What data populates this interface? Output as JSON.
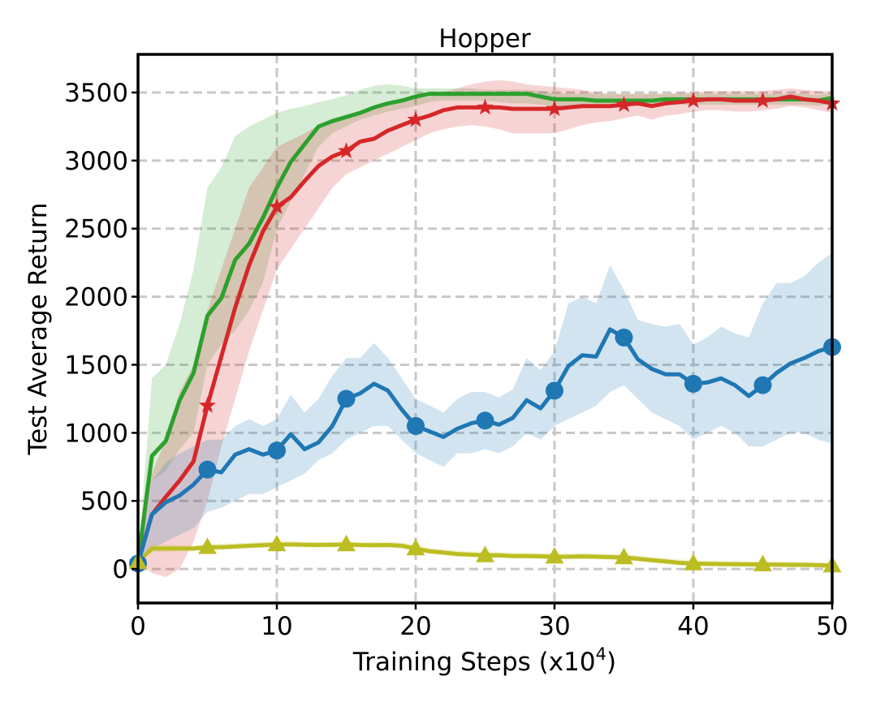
{
  "chart_data": {
    "type": "line",
    "title": "Hopper",
    "xlabel": "Training Steps (x10",
    "xlabel_sup": "4",
    "xlabel_end": ")",
    "ylabel": "Test Average Return",
    "xlim": [
      0,
      50
    ],
    "ylim": [
      -250,
      3780
    ],
    "xticks": [
      0,
      10,
      20,
      30,
      40,
      50
    ],
    "yticks": [
      0,
      500,
      1000,
      1500,
      2000,
      2500,
      3000,
      3500
    ],
    "grid": true,
    "series": [
      {
        "color": "#2ca02c",
        "marker": "none",
        "x": [
          0,
          1,
          2,
          3,
          4,
          5,
          6,
          7,
          8,
          9,
          10,
          11,
          12,
          13,
          14,
          15,
          16,
          17,
          18,
          19,
          20,
          21,
          22,
          23,
          24,
          25,
          26,
          27,
          28,
          29,
          30,
          31,
          32,
          33,
          34,
          35,
          36,
          37,
          38,
          39,
          40,
          41,
          42,
          43,
          44,
          45,
          46,
          47,
          48,
          49,
          50
        ],
        "y": [
          50,
          830,
          940,
          1240,
          1440,
          1860,
          1990,
          2270,
          2390,
          2580,
          2800,
          2990,
          3120,
          3250,
          3290,
          3320,
          3350,
          3390,
          3420,
          3440,
          3470,
          3490,
          3490,
          3490,
          3490,
          3490,
          3490,
          3490,
          3490,
          3470,
          3450,
          3450,
          3450,
          3440,
          3440,
          3440,
          3440,
          3440,
          3450,
          3450,
          3450,
          3450,
          3450,
          3450,
          3450,
          3450,
          3450,
          3450,
          3450,
          3440,
          3460
        ],
        "lower": [
          50,
          650,
          720,
          880,
          1000,
          1500,
          1650,
          1750,
          1900,
          2100,
          2500,
          2700,
          2900,
          3100,
          3200,
          3250,
          3300,
          3330,
          3360,
          3380,
          3400,
          3430,
          3440,
          3440,
          3440,
          3440,
          3430,
          3420,
          3420,
          3410,
          3400,
          3400,
          3400,
          3400,
          3400,
          3400,
          3400,
          3400,
          3410,
          3410,
          3410,
          3410,
          3410,
          3410,
          3410,
          3410,
          3410,
          3410,
          3410,
          3400,
          3420
        ],
        "upper": [
          50,
          1400,
          1500,
          1800,
          2200,
          2800,
          2950,
          3180,
          3250,
          3300,
          3350,
          3380,
          3400,
          3430,
          3450,
          3480,
          3520,
          3550,
          3560,
          3550,
          3530,
          3530,
          3530,
          3530,
          3530,
          3520,
          3520,
          3520,
          3520,
          3510,
          3500,
          3490,
          3490,
          3490,
          3490,
          3490,
          3490,
          3490,
          3490,
          3490,
          3490,
          3490,
          3490,
          3490,
          3490,
          3490,
          3490,
          3490,
          3490,
          3480,
          3500
        ]
      },
      {
        "color": "#d62728",
        "marker": "star",
        "x": [
          0,
          1,
          2,
          3,
          4,
          5,
          6,
          7,
          8,
          9,
          10,
          11,
          12,
          13,
          14,
          15,
          16,
          17,
          18,
          19,
          20,
          21,
          22,
          23,
          24,
          25,
          26,
          27,
          28,
          29,
          30,
          31,
          32,
          33,
          34,
          35,
          36,
          37,
          38,
          39,
          40,
          41,
          42,
          43,
          44,
          45,
          46,
          47,
          48,
          49,
          50
        ],
        "y": [
          50,
          400,
          530,
          650,
          790,
          1200,
          1560,
          1920,
          2230,
          2480,
          2660,
          2730,
          2850,
          2960,
          3030,
          3070,
          3140,
          3160,
          3220,
          3260,
          3300,
          3330,
          3370,
          3390,
          3390,
          3390,
          3390,
          3380,
          3380,
          3380,
          3380,
          3390,
          3400,
          3400,
          3400,
          3410,
          3420,
          3400,
          3420,
          3430,
          3440,
          3450,
          3450,
          3440,
          3440,
          3440,
          3450,
          3470,
          3450,
          3440,
          3420
        ],
        "lower": [
          50,
          -30,
          -60,
          0,
          200,
          500,
          900,
          1250,
          1600,
          1900,
          2200,
          2350,
          2500,
          2650,
          2800,
          2900,
          2950,
          3000,
          3050,
          3100,
          3150,
          3200,
          3230,
          3250,
          3260,
          3250,
          3230,
          3200,
          3200,
          3200,
          3200,
          3230,
          3260,
          3280,
          3290,
          3310,
          3330,
          3300,
          3330,
          3340,
          3360,
          3370,
          3370,
          3360,
          3360,
          3370,
          3380,
          3400,
          3390,
          3370,
          3350
        ],
        "upper": [
          50,
          700,
          950,
          1300,
          1500,
          1900,
          2200,
          2500,
          2800,
          2950,
          3100,
          3150,
          3200,
          3260,
          3300,
          3320,
          3360,
          3380,
          3420,
          3440,
          3460,
          3470,
          3500,
          3530,
          3560,
          3580,
          3590,
          3580,
          3560,
          3550,
          3540,
          3530,
          3520,
          3500,
          3490,
          3490,
          3490,
          3490,
          3490,
          3500,
          3500,
          3510,
          3510,
          3510,
          3510,
          3510,
          3520,
          3530,
          3520,
          3510,
          3510
        ]
      },
      {
        "color": "#1f77b4",
        "marker": "circle",
        "x": [
          0,
          1,
          2,
          3,
          4,
          5,
          6,
          7,
          8,
          9,
          10,
          11,
          12,
          13,
          14,
          15,
          16,
          17,
          18,
          19,
          20,
          21,
          22,
          23,
          24,
          25,
          26,
          27,
          28,
          29,
          30,
          31,
          32,
          33,
          34,
          35,
          36,
          37,
          38,
          39,
          40,
          41,
          42,
          43,
          44,
          45,
          46,
          47,
          48,
          49,
          50
        ],
        "y": [
          40,
          400,
          490,
          540,
          620,
          730,
          710,
          840,
          880,
          840,
          870,
          990,
          880,
          930,
          1050,
          1250,
          1290,
          1360,
          1310,
          1170,
          1050,
          1010,
          970,
          1030,
          1070,
          1090,
          1060,
          1110,
          1240,
          1180,
          1310,
          1490,
          1570,
          1560,
          1760,
          1700,
          1540,
          1470,
          1430,
          1430,
          1360,
          1370,
          1400,
          1350,
          1270,
          1350,
          1440,
          1510,
          1550,
          1600,
          1630
        ],
        "lower": [
          40,
          150,
          200,
          250,
          300,
          420,
          450,
          500,
          550,
          550,
          600,
          650,
          700,
          800,
          850,
          950,
          1000,
          1050,
          1050,
          950,
          850,
          800,
          750,
          850,
          850,
          880,
          850,
          900,
          1000,
          950,
          1050,
          1100,
          1150,
          1200,
          1300,
          1350,
          1250,
          1150,
          1100,
          1050,
          950,
          1000,
          1050,
          1000,
          900,
          900,
          950,
          1000,
          1000,
          950,
          920
        ],
        "upper": [
          40,
          650,
          780,
          850,
          900,
          950,
          950,
          1050,
          1100,
          1050,
          1100,
          1280,
          1150,
          1250,
          1420,
          1550,
          1550,
          1660,
          1550,
          1400,
          1250,
          1200,
          1150,
          1250,
          1300,
          1300,
          1260,
          1320,
          1550,
          1460,
          1600,
          1950,
          2000,
          1950,
          2230,
          2050,
          1830,
          1800,
          1780,
          1800,
          1650,
          1700,
          1780,
          1730,
          1700,
          1950,
          2100,
          2100,
          2150,
          2250,
          2320
        ]
      },
      {
        "color": "#bcbd22",
        "marker": "triangle",
        "x": [
          0,
          1,
          2,
          3,
          4,
          5,
          6,
          7,
          8,
          9,
          10,
          11,
          12,
          13,
          14,
          15,
          16,
          17,
          18,
          19,
          20,
          21,
          22,
          23,
          24,
          25,
          26,
          27,
          28,
          29,
          30,
          31,
          32,
          33,
          34,
          35,
          36,
          37,
          38,
          39,
          40,
          41,
          42,
          43,
          44,
          45,
          46,
          47,
          48,
          49,
          50
        ],
        "y": [
          50,
          150,
          150,
          150,
          150,
          160,
          160,
          165,
          170,
          175,
          180,
          180,
          178,
          176,
          178,
          180,
          176,
          175,
          176,
          170,
          150,
          130,
          120,
          110,
          105,
          100,
          100,
          95,
          95,
          93,
          90,
          90,
          92,
          90,
          87,
          85,
          75,
          65,
          55,
          45,
          40,
          38,
          36,
          35,
          34,
          33,
          32,
          31,
          30,
          28,
          25
        ],
        "lower": [
          50,
          120,
          125,
          130,
          130,
          135,
          140,
          145,
          150,
          155,
          160,
          160,
          158,
          156,
          158,
          160,
          156,
          155,
          156,
          150,
          130,
          110,
          100,
          90,
          85,
          80,
          80,
          75,
          75,
          73,
          70,
          70,
          72,
          70,
          67,
          65,
          55,
          45,
          35,
          25,
          20,
          18,
          16,
          15,
          14,
          13,
          12,
          11,
          10,
          8,
          5
        ],
        "upper": [
          50,
          180,
          180,
          175,
          175,
          185,
          185,
          190,
          195,
          200,
          205,
          205,
          200,
          198,
          200,
          205,
          200,
          198,
          200,
          195,
          175,
          155,
          145,
          135,
          130,
          125,
          125,
          120,
          120,
          118,
          115,
          115,
          118,
          115,
          112,
          110,
          100,
          90,
          80,
          70,
          65,
          62,
          60,
          58,
          57,
          56,
          55,
          54,
          52,
          50,
          48
        ]
      }
    ]
  }
}
